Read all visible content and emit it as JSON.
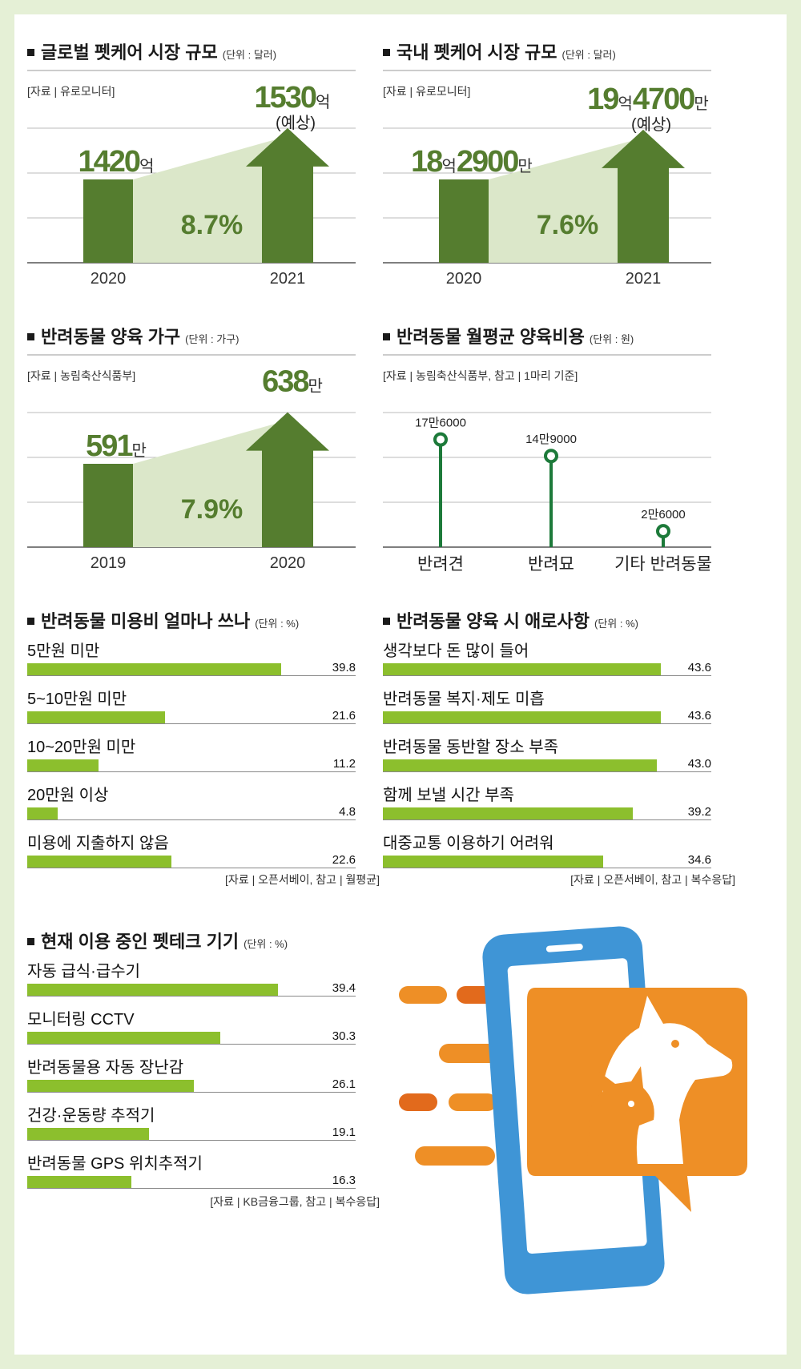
{
  "global_market": {
    "title": "글로벌 펫케어 시장 규모",
    "unit": "(단위 : 달러)",
    "source": "[자료 | 유로모니터]",
    "growth": "8.7%",
    "bars": [
      {
        "year": "2020",
        "value_num": "1420",
        "value_unit": "억",
        "note": ""
      },
      {
        "year": "2021",
        "value_num": "1530",
        "value_unit": "억",
        "note": "(예상)"
      }
    ]
  },
  "domestic_market": {
    "title": "국내 펫케어 시장 규모",
    "unit": "(단위 : 달러)",
    "source": "[자료 | 유로모니터]",
    "growth": "7.6%",
    "bars": [
      {
        "year": "2020",
        "parts": [
          "18",
          "억",
          "2900",
          "만"
        ],
        "note": ""
      },
      {
        "year": "2021",
        "parts": [
          "19",
          "억",
          "4700",
          "만"
        ],
        "note": "(예상)"
      }
    ]
  },
  "households": {
    "title": "반려동물 양육 가구",
    "unit": "(단위 : 가구)",
    "source": "[자료 | 농림축산식품부]",
    "growth": "7.9%",
    "bars": [
      {
        "year": "2019",
        "value_num": "591",
        "value_unit": "만"
      },
      {
        "year": "2020",
        "value_num": "638",
        "value_unit": "만"
      }
    ]
  },
  "monthly_cost": {
    "title": "반려동물 월평균 양육비용",
    "unit": "(단위 : 원)",
    "source": "[자료 | 농림축산식품부, 참고 | 1마리 기준]"
  },
  "grooming": {
    "title": "반려동물 미용비 얼마나 쓰나",
    "unit": "(단위 : %)",
    "source": "[자료 | 오픈서베이, 참고 | 월평균]"
  },
  "difficulties": {
    "title": "반려동물 양육 시 애로사항",
    "unit": "(단위 : %)",
    "source": "[자료 | 오픈서베이, 참고 | 복수응답]"
  },
  "pettech": {
    "title": "현재 이용 중인 펫테크 기기",
    "unit": "(단위 : %)",
    "source": "[자료 | KB금융그룹, 참고 | 복수응답]"
  },
  "colors": {
    "dark_green": "#557d2f",
    "light_fill": "#dbe7c9",
    "bar_green": "#8cbf2d",
    "lollipop": "#1d7a3a",
    "orange": "#ee8f26",
    "orange_dark": "#e26a1c",
    "phone_blue": "#3f95d6"
  },
  "icons": [
    "phone-icon",
    "chat-bubble-icon",
    "dog-icon",
    "cat-icon"
  ],
  "chart_data": [
    {
      "type": "bar",
      "title": "글로벌 펫케어 시장 규모",
      "categories": [
        "2020",
        "2021"
      ],
      "values": [
        1420,
        1530
      ],
      "value_labels": [
        "1420억",
        "1530억"
      ],
      "annotation": "8.7%"
    },
    {
      "type": "bar",
      "title": "국내 펫케어 시장 규모",
      "categories": [
        "2020",
        "2021"
      ],
      "values": [
        182900,
        194700
      ],
      "value_labels": [
        "18억2900만",
        "19억4700만"
      ],
      "annotation": "7.6%"
    },
    {
      "type": "bar",
      "title": "반려동물 양육 가구",
      "categories": [
        "2019",
        "2020"
      ],
      "values": [
        591,
        638
      ],
      "value_labels": [
        "591만",
        "638만"
      ],
      "annotation": "7.9%"
    },
    {
      "type": "scatter",
      "title": "반려동물 월평균 양육비용",
      "categories": [
        "반려견",
        "반려묘",
        "기타 반려동물"
      ],
      "values": [
        176000,
        149000,
        26000
      ],
      "value_labels": [
        "17만6000",
        "14만9000",
        "2만6000"
      ],
      "ylim": [
        0,
        220000
      ]
    },
    {
      "type": "bar",
      "title": "반려동물 미용비 얼마나 쓰나",
      "categories": [
        "5만원 미만",
        "5~10만원 미만",
        "10~20만원 미만",
        "20만원 이상",
        "미용에 지출하지 않음"
      ],
      "values": [
        39.8,
        21.6,
        11.2,
        4.8,
        22.6
      ],
      "value_labels": [
        "39.8",
        "21.6",
        "11.2",
        "4.8",
        "22.6"
      ],
      "xlim": [
        0,
        50
      ]
    },
    {
      "type": "bar",
      "title": "반려동물 양육 시 애로사항",
      "categories": [
        "생각보다 돈 많이 들어",
        "반려동물 복지·제도 미흡",
        "반려동물 동반할 장소 부족",
        "함께 보낼 시간 부족",
        "대중교통 이용하기 어려워"
      ],
      "values": [
        43.6,
        43.6,
        43.0,
        39.2,
        34.6
      ],
      "value_labels": [
        "43.6",
        "43.6",
        "43.0",
        "39.2",
        "34.6"
      ],
      "xlim": [
        0,
        50
      ]
    },
    {
      "type": "bar",
      "title": "현재 이용 중인 펫테크 기기",
      "categories": [
        "자동 급식·급수기",
        "모니터링 CCTV",
        "반려동물용 자동 장난감",
        "건강·운동량 추적기",
        "반려동물 GPS 위치추적기"
      ],
      "values": [
        39.4,
        30.3,
        26.1,
        19.1,
        16.3
      ],
      "value_labels": [
        "39.4",
        "30.3",
        "26.1",
        "19.1",
        "16.3"
      ],
      "xlim": [
        0,
        50
      ]
    }
  ]
}
